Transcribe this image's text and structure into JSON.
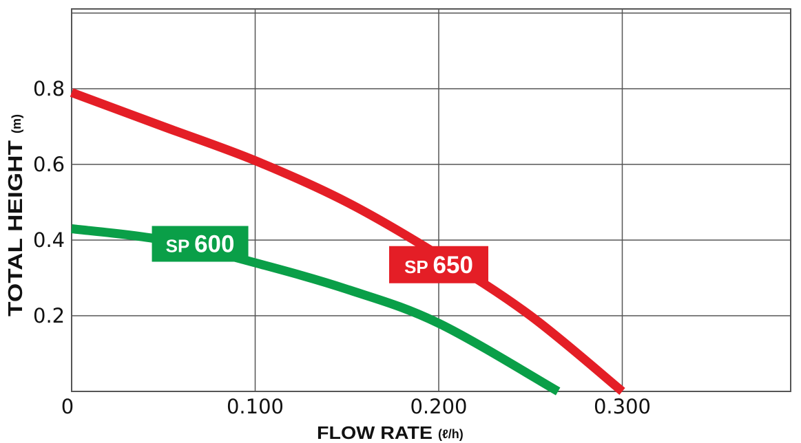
{
  "chart_data": {
    "type": "line",
    "title": "",
    "xlabel": "FLOW RATE",
    "xlabel_unit": "(ℓ/h)",
    "ylabel": "TOTAL HEIGHT",
    "ylabel_unit": "(m)",
    "xlim": [
      0,
      0.4
    ],
    "ylim": [
      0,
      1.0
    ],
    "x_ticks": [
      {
        "value": 0,
        "label": "0"
      },
      {
        "value": 0.1,
        "label": "0.100"
      },
      {
        "value": 0.2,
        "label": "0.200"
      },
      {
        "value": 0.3,
        "label": "0.300"
      }
    ],
    "y_ticks": [
      {
        "value": 0.2,
        "label": "0.2"
      },
      {
        "value": 0.4,
        "label": "0.4"
      },
      {
        "value": 0.6,
        "label": "0.6"
      },
      {
        "value": 0.8,
        "label": "0.8"
      }
    ],
    "grid": true,
    "series": [
      {
        "name": "SP 650",
        "label_prefix": "SP",
        "label_number": "650",
        "color": "#e41e26",
        "x": [
          0.0,
          0.05,
          0.1,
          0.15,
          0.2,
          0.25,
          0.3
        ],
        "y": [
          0.79,
          0.7,
          0.61,
          0.5,
          0.36,
          0.2,
          0.0
        ]
      },
      {
        "name": "SP 600",
        "label_prefix": "SP",
        "label_number": "600",
        "color": "#0a9f48",
        "x": [
          0.0,
          0.05,
          0.1,
          0.15,
          0.2,
          0.265
        ],
        "y": [
          0.43,
          0.4,
          0.34,
          0.27,
          0.18,
          0.0
        ]
      }
    ]
  }
}
